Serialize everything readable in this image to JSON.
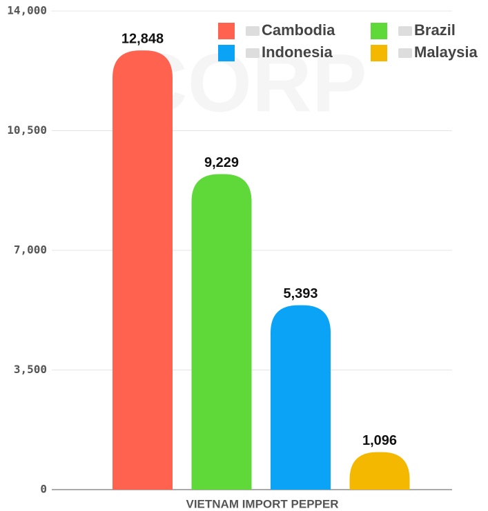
{
  "chart_data": {
    "type": "bar",
    "watermark": "CORP",
    "xlabel": "VIETNAM IMPORT PEPPER",
    "categories": [
      "VIETNAM IMPORT PEPPER"
    ],
    "series": [
      {
        "name": "Cambodia",
        "color": "#ff6350",
        "values": [
          12848
        ],
        "value_labels": [
          "12,848"
        ]
      },
      {
        "name": "Brazil",
        "color": "#5fd83a",
        "values": [
          9229
        ],
        "value_labels": [
          "9,229"
        ]
      },
      {
        "name": "Indonesia",
        "color": "#0aa3f5",
        "values": [
          5393
        ],
        "value_labels": [
          "5,393"
        ]
      },
      {
        "name": "Malaysia",
        "color": "#f5b800",
        "values": [
          1096
        ],
        "value_labels": [
          "1,096"
        ]
      }
    ],
    "ylim": [
      0,
      14000
    ],
    "yticks": [
      0,
      {
        "value": 3500,
        "label": "3,500"
      },
      {
        "value": 7000,
        "label": "7,000"
      },
      {
        "value": 10500,
        "label": "10,500"
      },
      {
        "value": 14000,
        "label": "14,000"
      }
    ],
    "grid": true,
    "legend": "top right"
  }
}
